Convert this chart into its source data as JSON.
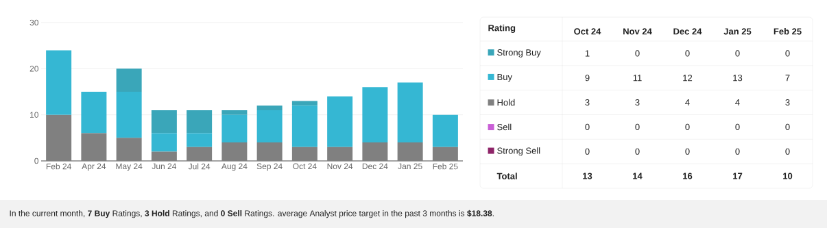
{
  "chart_data": [
    {
      "type": "bar",
      "stacked": true,
      "categories": [
        "Feb 24",
        "Apr 24",
        "May 24",
        "Jun 24",
        "Jul 24",
        "Aug 24",
        "Sep 24",
        "Oct 24",
        "Nov 24",
        "Dec 24",
        "Jan 25",
        "Feb 25"
      ],
      "series": [
        {
          "color": "#8e2468",
          "values": [
            0,
            0,
            0,
            0,
            0,
            0,
            0,
            0,
            0,
            0,
            0,
            0
          ]
        },
        {
          "color": "#c95fd6",
          "values": [
            0,
            0,
            0,
            0,
            0,
            0,
            0,
            0,
            0,
            0,
            0,
            0
          ]
        },
        {
          "color": "#808080",
          "values": [
            10,
            6,
            5,
            2,
            3,
            4,
            4,
            3,
            3,
            4,
            4,
            3
          ]
        },
        {
          "color": "#35b7d3",
          "values": [
            14,
            9,
            10,
            4,
            3,
            6,
            7,
            9,
            11,
            12,
            13,
            7
          ]
        },
        {
          "color": "#3aa6b9",
          "values": [
            0,
            0,
            5,
            5,
            5,
            1,
            1,
            1,
            0,
            0,
            0,
            0
          ]
        }
      ],
      "ylim": [
        0,
        30
      ],
      "yticks": [
        0,
        10,
        20,
        30
      ],
      "grid": "y",
      "annotations": [
        "In the current month, **7 Buy** Ratings, **3 Hold** Ratings, and **0 Sell** Ratings. average Analyst price target in the past 3 months is **$18.38**."
      ]
    },
    {
      "type": "heatmap",
      "ylabel": "Rating",
      "categories": [
        "Oct 24",
        "Nov 24",
        "Dec 24",
        "Jan 25",
        "Feb 25"
      ],
      "y_categories": [
        "Strong Buy",
        "Buy",
        "Hold",
        "Sell",
        "Strong Sell",
        "Total"
      ],
      "cells": [
        [
          1,
          0,
          0,
          0,
          0
        ],
        [
          9,
          11,
          12,
          13,
          7
        ],
        [
          3,
          3,
          4,
          4,
          3
        ],
        [
          0,
          0,
          0,
          0,
          0
        ],
        [
          0,
          0,
          0,
          0,
          0
        ],
        [
          13,
          14,
          16,
          17,
          10
        ]
      ],
      "data_labels": true
    }
  ]
}
